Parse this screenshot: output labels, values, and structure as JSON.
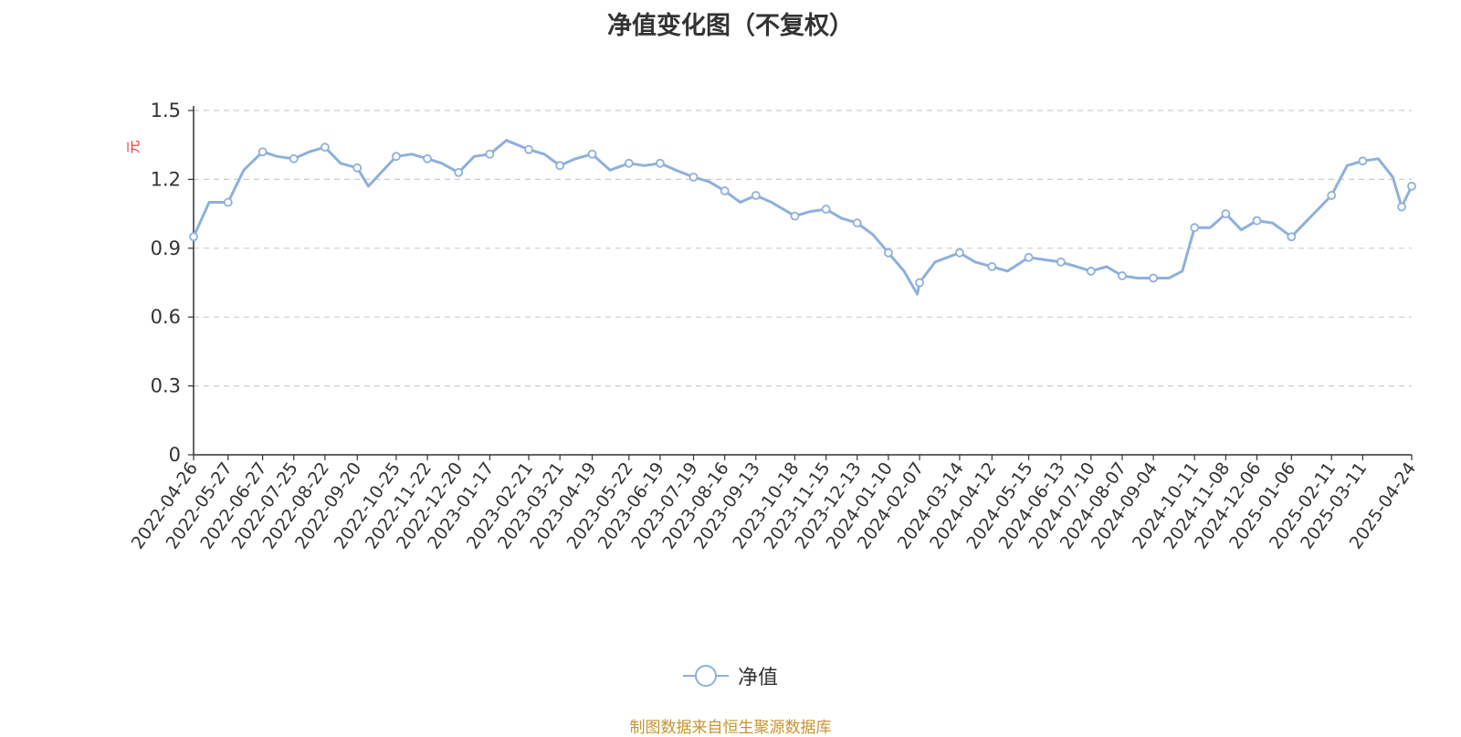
{
  "chart_data": {
    "type": "line",
    "title": "净值变化图（不复权）",
    "ylabel": "元",
    "xlabel": "",
    "ylim": [
      0,
      1.5
    ],
    "yticks": [
      "0",
      "0.3",
      "0.6",
      "0.9",
      "1.2",
      "1.5"
    ],
    "grid": true,
    "legend_position": "bottom-center",
    "x_tick_labels": [
      "2022-04-26",
      "2022-05-27",
      "2022-06-27",
      "2022-07-25",
      "2022-08-22",
      "2022-09-20",
      "2022-10-25",
      "2022-11-22",
      "2022-12-20",
      "2023-01-17",
      "2023-02-21",
      "2023-03-21",
      "2023-04-19",
      "2023-05-22",
      "2023-06-19",
      "2023-07-19",
      "2023-08-16",
      "2023-09-13",
      "2023-10-18",
      "2023-11-15",
      "2023-12-13",
      "2024-01-10",
      "2024-02-07",
      "2024-03-14",
      "2024-04-12",
      "2024-05-15",
      "2024-06-13",
      "2024-07-10",
      "2024-08-07",
      "2024-09-04",
      "2024-10-11",
      "2024-11-08",
      "2024-12-06",
      "2025-01-06",
      "2025-02-11",
      "2025-03-11",
      "2025-04-24"
    ],
    "series": [
      {
        "name": "净值",
        "color": "#8eb0dc",
        "x": [
          "2022-04-26",
          "2022-05-10",
          "2022-05-27",
          "2022-06-10",
          "2022-06-27",
          "2022-07-10",
          "2022-07-25",
          "2022-08-08",
          "2022-08-22",
          "2022-09-05",
          "2022-09-20",
          "2022-09-30",
          "2022-10-25",
          "2022-11-08",
          "2022-11-22",
          "2022-12-05",
          "2022-12-20",
          "2023-01-03",
          "2023-01-17",
          "2023-02-01",
          "2023-02-21",
          "2023-03-07",
          "2023-03-21",
          "2023-04-04",
          "2023-04-19",
          "2023-05-05",
          "2023-05-22",
          "2023-06-05",
          "2023-06-19",
          "2023-07-03",
          "2023-07-19",
          "2023-08-02",
          "2023-08-16",
          "2023-08-30",
          "2023-09-13",
          "2023-09-27",
          "2023-10-18",
          "2023-11-01",
          "2023-11-15",
          "2023-11-29",
          "2023-12-13",
          "2023-12-27",
          "2024-01-10",
          "2024-01-24",
          "2024-02-05",
          "2024-02-07",
          "2024-02-21",
          "2024-03-14",
          "2024-03-28",
          "2024-04-12",
          "2024-04-26",
          "2024-05-15",
          "2024-05-29",
          "2024-06-13",
          "2024-06-27",
          "2024-07-10",
          "2024-07-24",
          "2024-08-07",
          "2024-08-21",
          "2024-09-04",
          "2024-09-18",
          "2024-09-30",
          "2024-10-11",
          "2024-10-25",
          "2024-11-08",
          "2024-11-22",
          "2024-12-06",
          "2024-12-20",
          "2025-01-06",
          "2025-01-20",
          "2025-02-11",
          "2025-02-25",
          "2025-03-11",
          "2025-03-25",
          "2025-04-07",
          "2025-04-15",
          "2025-04-24"
        ],
        "values": [
          0.95,
          1.1,
          1.1,
          1.24,
          1.32,
          1.3,
          1.29,
          1.32,
          1.34,
          1.27,
          1.25,
          1.17,
          1.3,
          1.31,
          1.29,
          1.27,
          1.23,
          1.3,
          1.31,
          1.37,
          1.33,
          1.31,
          1.26,
          1.29,
          1.31,
          1.24,
          1.27,
          1.26,
          1.27,
          1.24,
          1.21,
          1.19,
          1.15,
          1.1,
          1.13,
          1.1,
          1.04,
          1.06,
          1.07,
          1.03,
          1.01,
          0.96,
          0.88,
          0.8,
          0.7,
          0.75,
          0.84,
          0.88,
          0.84,
          0.82,
          0.8,
          0.86,
          0.85,
          0.84,
          0.82,
          0.8,
          0.82,
          0.78,
          0.77,
          0.77,
          0.77,
          0.8,
          0.99,
          0.99,
          1.05,
          0.98,
          1.02,
          1.01,
          0.95,
          1.02,
          1.13,
          1.26,
          1.28,
          1.29,
          1.21,
          1.08,
          1.17
        ],
        "markers": [
          "2022-04-26",
          "2022-05-27",
          "2022-06-27",
          "2022-07-25",
          "2022-08-22",
          "2022-09-20",
          "2022-10-25",
          "2022-11-22",
          "2022-12-20",
          "2023-01-17",
          "2023-02-21",
          "2023-03-21",
          "2023-04-19",
          "2023-05-22",
          "2023-06-19",
          "2023-07-19",
          "2023-08-16",
          "2023-09-13",
          "2023-10-18",
          "2023-11-15",
          "2023-12-13",
          "2024-01-10",
          "2024-02-07",
          "2024-03-14",
          "2024-04-12",
          "2024-05-15",
          "2024-06-13",
          "2024-07-10",
          "2024-08-07",
          "2024-09-04",
          "2024-10-11",
          "2024-11-08",
          "2024-12-06",
          "2025-01-06",
          "2025-02-11",
          "2025-03-11",
          "2025-04-15",
          "2025-04-24"
        ]
      }
    ]
  },
  "legend": {
    "label": "净值"
  },
  "footer": {
    "source": "制图数据来自恒生聚源数据库"
  }
}
